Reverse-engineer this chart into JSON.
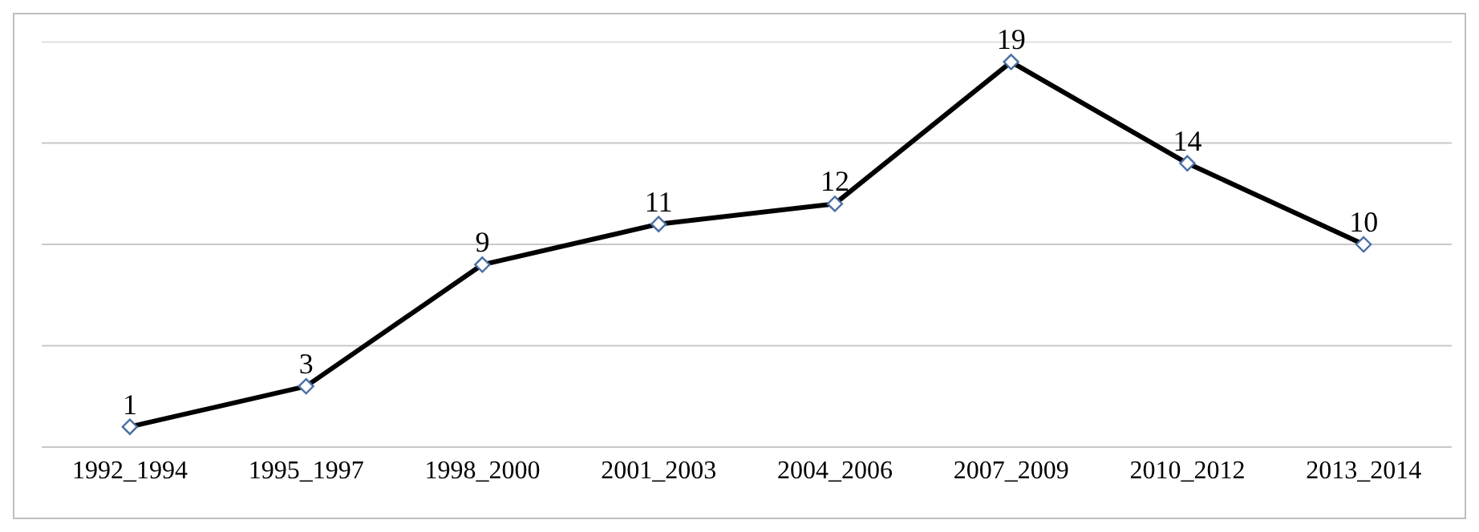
{
  "chart_data": {
    "type": "line",
    "categories": [
      "1992_1994",
      "1995_1997",
      "1998_2000",
      "2001_2003",
      "2004_2006",
      "2007_2009",
      "2010_2012",
      "2013_2014"
    ],
    "series": [
      {
        "color": "#000000",
        "values": [
          1,
          3,
          9,
          11,
          12,
          19,
          14,
          10
        ]
      }
    ],
    "ylim": [
      0,
      20
    ],
    "yticks": [
      {
        "value": 0,
        "label": null
      },
      {
        "value": 5,
        "label": null
      },
      {
        "value": 10,
        "label": null
      },
      {
        "value": 15,
        "label": null
      },
      {
        "value": 20,
        "label": null
      }
    ],
    "grid": "y",
    "tick_labels": "x",
    "marker": "diamond",
    "line_style": "solid",
    "data_labels": true,
    "legend": false
  }
}
